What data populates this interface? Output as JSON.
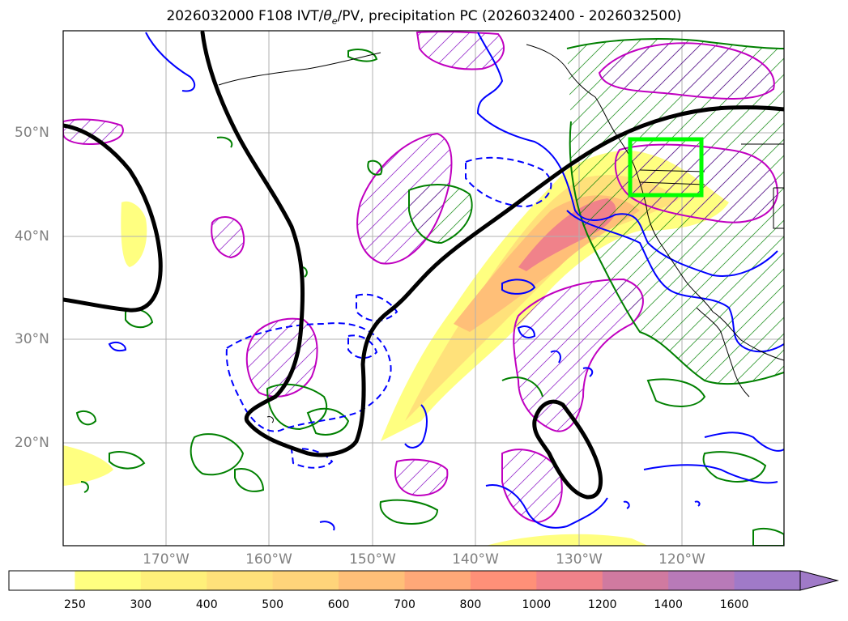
{
  "title": "2026032000 F108 IVT/θe/PV, precipitation PC (2026032400 - 2026032500)",
  "title_parts": {
    "prefix": "2026032000 F108 IVT/",
    "theta": "θ",
    "theta_sub": "e",
    "suffix": "/PV, precipitation PC (2026032400 - 2026032500)"
  },
  "map": {
    "lat_labels": [
      "50°N",
      "40°N",
      "30°N",
      "20°N"
    ],
    "lon_labels": [
      "170°W",
      "160°W",
      "150°W",
      "140°W",
      "130°W",
      "120°W"
    ],
    "colors": {
      "pv_contour": "#000000",
      "theta_e_pos": "#0000ff",
      "precip_contour": "#008000",
      "pc_contour": "#c000c0",
      "target_box": "#00ff00",
      "gridline": "#b0b0b0",
      "coastline": "#000000"
    }
  },
  "colorbar": {
    "levels": [
      "250",
      "300",
      "400",
      "500",
      "600",
      "700",
      "800",
      "1000",
      "1200",
      "1400",
      "1600"
    ],
    "colors": [
      "#ffffff",
      "#ffff80",
      "#fff07a",
      "#ffe17a",
      "#ffd47a",
      "#ffbf78",
      "#ffa878",
      "#ff9078",
      "#f0828a",
      "#d07aa0",
      "#b87ab8",
      "#a07ac8"
    ],
    "extend": "max"
  }
}
